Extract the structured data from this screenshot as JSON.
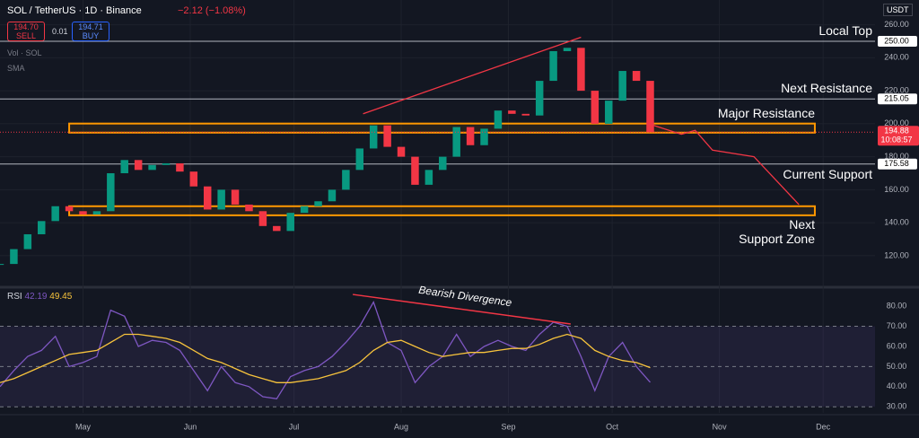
{
  "header": {
    "symbol": "SOL / TetherUS · 1D · Binance",
    "change": "−2.12 (−1.08%)",
    "sell_price": "194.70",
    "sell": "SELL",
    "spread": "0.01",
    "buy_price": "194.71",
    "buy": "BUY",
    "indicators": [
      "Vol · SOL",
      "SMA"
    ]
  },
  "chart_data": [
    {
      "type": "candlestick",
      "currency": "USDT",
      "up_color": "#089981",
      "down_color": "#f23645",
      "x": [
        98,
        102,
        106,
        110,
        114,
        118,
        122,
        126,
        130,
        134,
        138,
        142,
        146,
        150,
        154,
        158,
        162,
        166,
        170,
        174,
        178,
        182,
        186,
        190,
        194,
        198,
        202,
        206,
        210,
        214,
        218,
        222,
        226,
        230,
        234,
        238,
        242,
        246,
        250,
        254,
        258,
        262,
        266,
        270,
        274,
        278,
        282,
        286
      ],
      "values": [
        115,
        124,
        133,
        141,
        150,
        147,
        145,
        147,
        170,
        178,
        172,
        175,
        176,
        171,
        162,
        148,
        160,
        151,
        147,
        138,
        135,
        146,
        150,
        153,
        160,
        172,
        185,
        199,
        186,
        180,
        163,
        172,
        180,
        198,
        187,
        197,
        208,
        206,
        205,
        226,
        244,
        246,
        220,
        200,
        214,
        232,
        226,
        194.88
      ],
      "xlim": [
        98,
        351
      ],
      "xticks": [
        {
          "value": 122,
          "label": "May"
        },
        {
          "value": 153,
          "label": "Jun"
        },
        {
          "value": 183,
          "label": "Jul"
        },
        {
          "value": 214,
          "label": "Aug"
        },
        {
          "value": 245,
          "label": "Sep"
        },
        {
          "value": 275,
          "label": "Oct"
        },
        {
          "value": 306,
          "label": "Nov"
        },
        {
          "value": 336,
          "label": "Dec"
        }
      ],
      "ylim": [
        102,
        275
      ],
      "yticks": [
        {
          "value": 120,
          "label": "120.00"
        },
        {
          "value": 140,
          "label": "140.00"
        },
        {
          "value": 160,
          "label": "160.00"
        },
        {
          "value": 180,
          "label": "180.00"
        },
        {
          "value": 200,
          "label": "200.00"
        },
        {
          "value": 220,
          "label": "220.00"
        },
        {
          "value": 240,
          "label": "240.00"
        },
        {
          "value": 260,
          "label": "260.00"
        }
      ],
      "levels": [
        {
          "name": "Local Top",
          "value": 250,
          "label": "250.00"
        },
        {
          "name": "Next Resistance",
          "value": 215.05,
          "label": "215.05"
        },
        {
          "name": "Current Support",
          "value": 175.58,
          "label": "175.58"
        }
      ],
      "current": {
        "value": 194.88,
        "label": "194.88",
        "countdown": "10:08:57"
      },
      "zones": [
        {
          "name": "Major Resistance",
          "x": [
            118,
            333.6
          ],
          "range": [
            194.6,
            200.1
          ]
        },
        {
          "name": "Next\nSupport Zone",
          "x": [
            118,
            333.6
          ],
          "range": [
            144.5,
            150
          ]
        }
      ],
      "trendlines": [
        {
          "color": "#f23645",
          "x": [
            203,
            266
          ],
          "y": [
            206,
            252.4
          ]
        },
        {
          "color": "#f23645",
          "x": [
            287,
            295,
            299,
            304,
            316,
            329
          ],
          "y": [
            199,
            193.6,
            196,
            184,
            180,
            151
          ]
        }
      ]
    },
    {
      "type": "line",
      "title": "RSI",
      "ylim": [
        27,
        88.5
      ],
      "yticks": [
        {
          "value": 30,
          "label": "30.00"
        },
        {
          "value": 40,
          "label": "40.00"
        },
        {
          "value": 50,
          "label": "50.00"
        },
        {
          "value": 60,
          "label": "60.00"
        },
        {
          "value": 70,
          "label": "70.00"
        },
        {
          "value": 80,
          "label": "80.00"
        }
      ],
      "band": [
        30,
        70
      ],
      "midline": 50,
      "series": [
        {
          "color": "#7e57c2",
          "last_label": "42.19",
          "values": [
            40,
            48,
            55,
            58,
            65,
            50,
            52,
            55,
            78,
            75,
            60,
            63,
            62,
            58,
            48,
            38,
            50,
            42,
            40,
            35,
            34,
            45,
            48,
            50,
            55,
            62,
            70,
            82,
            62,
            58,
            42,
            50,
            55,
            66,
            55,
            60,
            63,
            60,
            58,
            66,
            72,
            70,
            55,
            38,
            55,
            62,
            50,
            42.19
          ]
        },
        {
          "color": "#f7c33c",
          "last_label": "49.45",
          "values": [
            42,
            44,
            47,
            50,
            53,
            56,
            57,
            58,
            62,
            66,
            66,
            65,
            64,
            62,
            58,
            54,
            52,
            49,
            46,
            44,
            42,
            42,
            43,
            44,
            46,
            48,
            52,
            58,
            62,
            63,
            60,
            57,
            55,
            56,
            57,
            57,
            58,
            59,
            59,
            61,
            64,
            66,
            64,
            58,
            55,
            53,
            52,
            49.45
          ]
        }
      ],
      "divergence": {
        "name": "Bearish Divergence",
        "color": "#f23645",
        "x": [
          200,
          263
        ],
        "y": [
          85.8,
          71.1
        ]
      }
    }
  ]
}
